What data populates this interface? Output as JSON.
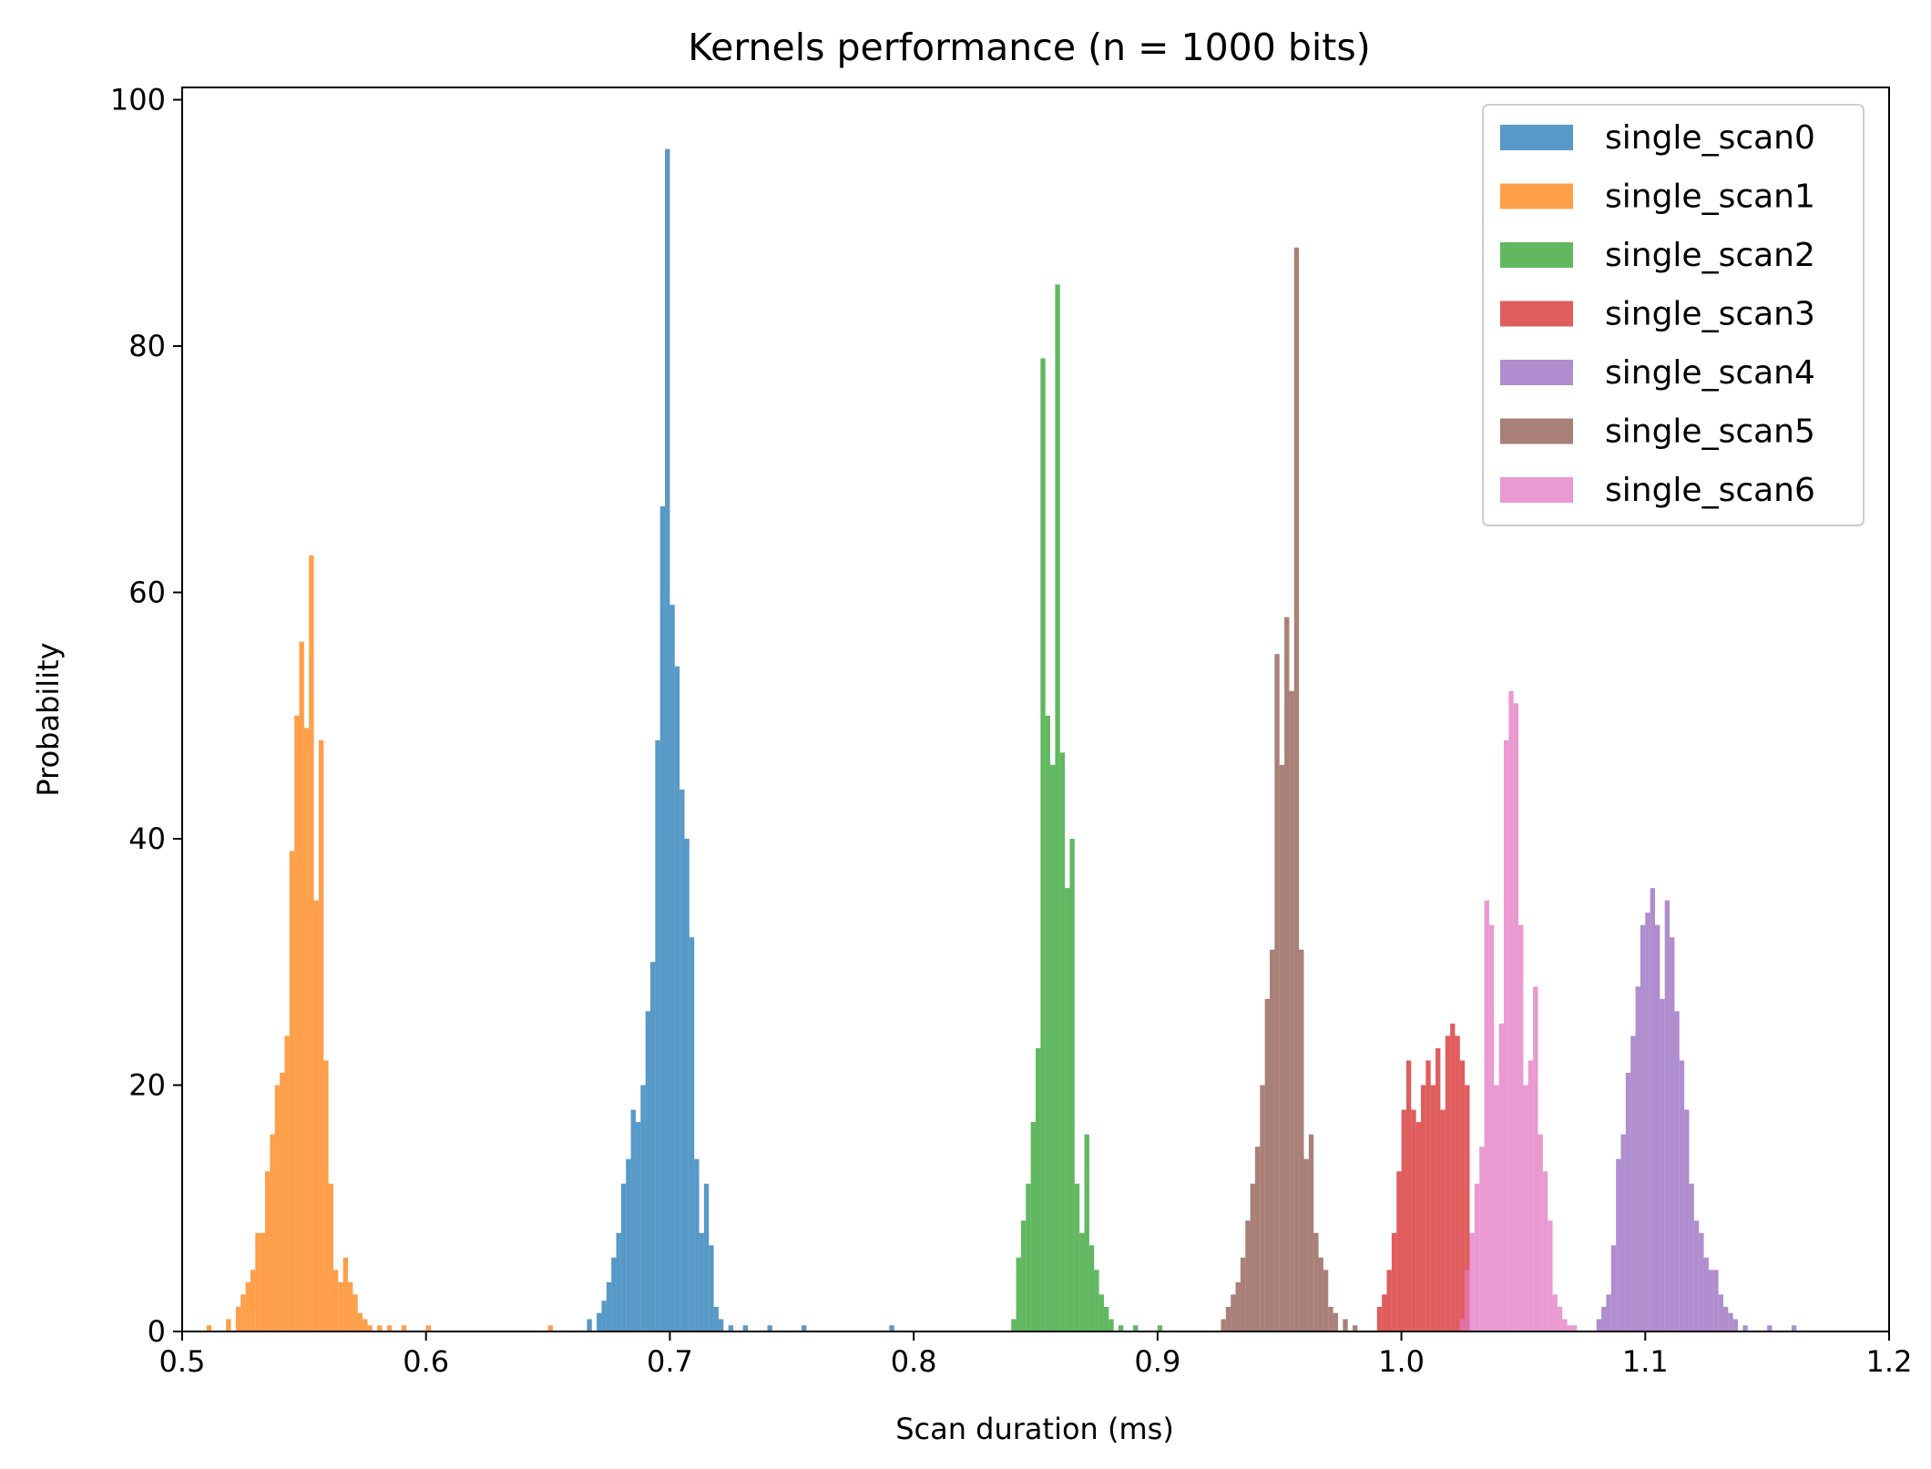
{
  "chart_data": {
    "type": "histogram",
    "title": "Kernels performance (n = 1000 bits)",
    "xlabel": "Scan duration (ms)",
    "ylabel": "Probability",
    "xlim": [
      0.5,
      1.2
    ],
    "ylim": [
      0,
      101
    ],
    "x_ticks": [
      0.5,
      0.6,
      0.7,
      0.8,
      0.9,
      1.0,
      1.1,
      1.2
    ],
    "x_tick_labels": [
      "0.5",
      "0.6",
      "0.7",
      "0.8",
      "0.9",
      "1.0",
      "1.1",
      "1.2"
    ],
    "y_ticks": [
      0,
      20,
      40,
      60,
      80,
      100
    ],
    "y_tick_labels": [
      "0",
      "20",
      "40",
      "60",
      "80",
      "100"
    ],
    "bin_width": 0.002,
    "bar_alpha": 0.75,
    "grid": false,
    "legend_position": "top-right",
    "series": [
      {
        "name": "single_scan0",
        "color": "#1f77b4",
        "points": [
          [
            0.666,
            1
          ],
          [
            0.67,
            1.5
          ],
          [
            0.672,
            2.5
          ],
          [
            0.674,
            4
          ],
          [
            0.676,
            6
          ],
          [
            0.678,
            8
          ],
          [
            0.68,
            12
          ],
          [
            0.682,
            14
          ],
          [
            0.684,
            18
          ],
          [
            0.686,
            17
          ],
          [
            0.688,
            20
          ],
          [
            0.69,
            26
          ],
          [
            0.692,
            30
          ],
          [
            0.694,
            48
          ],
          [
            0.696,
            67
          ],
          [
            0.698,
            96
          ],
          [
            0.7,
            59
          ],
          [
            0.702,
            54
          ],
          [
            0.704,
            44
          ],
          [
            0.706,
            40
          ],
          [
            0.708,
            32
          ],
          [
            0.71,
            14
          ],
          [
            0.712,
            8
          ],
          [
            0.714,
            12
          ],
          [
            0.716,
            7
          ],
          [
            0.718,
            2
          ],
          [
            0.72,
            1
          ],
          [
            0.724,
            0.5
          ],
          [
            0.73,
            0.5
          ],
          [
            0.74,
            0.5
          ],
          [
            0.754,
            0.5
          ],
          [
            0.79,
            0.5
          ]
        ]
      },
      {
        "name": "single_scan1",
        "color": "#ff7f0e",
        "points": [
          [
            0.51,
            0.5
          ],
          [
            0.518,
            1
          ],
          [
            0.522,
            2
          ],
          [
            0.524,
            3
          ],
          [
            0.526,
            4
          ],
          [
            0.528,
            5
          ],
          [
            0.53,
            8
          ],
          [
            0.532,
            8
          ],
          [
            0.534,
            13
          ],
          [
            0.536,
            16
          ],
          [
            0.538,
            20
          ],
          [
            0.54,
            21
          ],
          [
            0.542,
            24
          ],
          [
            0.544,
            39
          ],
          [
            0.546,
            50
          ],
          [
            0.548,
            56
          ],
          [
            0.55,
            49
          ],
          [
            0.552,
            63
          ],
          [
            0.554,
            35
          ],
          [
            0.556,
            48
          ],
          [
            0.558,
            22
          ],
          [
            0.56,
            12
          ],
          [
            0.562,
            5
          ],
          [
            0.564,
            4
          ],
          [
            0.566,
            6
          ],
          [
            0.568,
            4
          ],
          [
            0.57,
            3
          ],
          [
            0.572,
            1.5
          ],
          [
            0.574,
            1
          ],
          [
            0.576,
            0.5
          ],
          [
            0.58,
            0.5
          ],
          [
            0.584,
            0.5
          ],
          [
            0.59,
            0.5
          ],
          [
            0.6,
            0.5
          ],
          [
            0.65,
            0.5
          ]
        ]
      },
      {
        "name": "single_scan2",
        "color": "#2ca02c",
        "points": [
          [
            0.84,
            1
          ],
          [
            0.842,
            6
          ],
          [
            0.844,
            9
          ],
          [
            0.846,
            12
          ],
          [
            0.848,
            17
          ],
          [
            0.85,
            23
          ],
          [
            0.852,
            79
          ],
          [
            0.854,
            50
          ],
          [
            0.856,
            46
          ],
          [
            0.858,
            85
          ],
          [
            0.86,
            47
          ],
          [
            0.862,
            36
          ],
          [
            0.864,
            40
          ],
          [
            0.866,
            12
          ],
          [
            0.868,
            8
          ],
          [
            0.87,
            16
          ],
          [
            0.872,
            7
          ],
          [
            0.874,
            5
          ],
          [
            0.876,
            3
          ],
          [
            0.878,
            2
          ],
          [
            0.88,
            1
          ],
          [
            0.884,
            0.5
          ],
          [
            0.89,
            0.5
          ],
          [
            0.9,
            0.5
          ]
        ]
      },
      {
        "name": "single_scan3",
        "color": "#d62728",
        "points": [
          [
            0.99,
            2
          ],
          [
            0.992,
            3
          ],
          [
            0.994,
            5
          ],
          [
            0.996,
            8
          ],
          [
            0.998,
            13
          ],
          [
            1.0,
            18
          ],
          [
            1.002,
            22
          ],
          [
            1.004,
            18
          ],
          [
            1.006,
            17
          ],
          [
            1.008,
            20
          ],
          [
            1.01,
            22
          ],
          [
            1.012,
            20
          ],
          [
            1.014,
            23
          ],
          [
            1.016,
            18
          ],
          [
            1.018,
            24
          ],
          [
            1.02,
            25
          ],
          [
            1.022,
            24
          ],
          [
            1.024,
            22
          ],
          [
            1.026,
            20
          ]
        ]
      },
      {
        "name": "single_scan4",
        "color": "#9467bd",
        "points": [
          [
            1.08,
            1
          ],
          [
            1.082,
            2
          ],
          [
            1.084,
            3
          ],
          [
            1.086,
            7
          ],
          [
            1.088,
            14
          ],
          [
            1.09,
            16
          ],
          [
            1.092,
            21
          ],
          [
            1.094,
            24
          ],
          [
            1.096,
            28
          ],
          [
            1.098,
            33
          ],
          [
            1.1,
            34
          ],
          [
            1.102,
            36
          ],
          [
            1.104,
            33
          ],
          [
            1.106,
            27
          ],
          [
            1.108,
            35
          ],
          [
            1.11,
            32
          ],
          [
            1.112,
            26
          ],
          [
            1.114,
            22
          ],
          [
            1.116,
            18
          ],
          [
            1.118,
            12
          ],
          [
            1.12,
            9
          ],
          [
            1.122,
            8
          ],
          [
            1.124,
            6
          ],
          [
            1.126,
            5
          ],
          [
            1.128,
            5
          ],
          [
            1.13,
            3
          ],
          [
            1.132,
            2
          ],
          [
            1.134,
            1.5
          ],
          [
            1.136,
            1
          ],
          [
            1.14,
            0.5
          ],
          [
            1.15,
            0.5
          ],
          [
            1.16,
            0.5
          ]
        ]
      },
      {
        "name": "single_scan5",
        "color": "#8c564b",
        "points": [
          [
            0.926,
            1
          ],
          [
            0.928,
            2
          ],
          [
            0.93,
            3
          ],
          [
            0.932,
            4
          ],
          [
            0.934,
            6
          ],
          [
            0.936,
            9
          ],
          [
            0.938,
            12
          ],
          [
            0.94,
            15
          ],
          [
            0.942,
            20
          ],
          [
            0.944,
            27
          ],
          [
            0.946,
            31
          ],
          [
            0.948,
            55
          ],
          [
            0.95,
            46
          ],
          [
            0.952,
            58
          ],
          [
            0.954,
            52
          ],
          [
            0.956,
            88
          ],
          [
            0.958,
            31
          ],
          [
            0.96,
            14
          ],
          [
            0.962,
            16
          ],
          [
            0.964,
            8
          ],
          [
            0.966,
            6
          ],
          [
            0.968,
            5
          ],
          [
            0.97,
            2
          ],
          [
            0.972,
            1.5
          ],
          [
            0.976,
            1
          ],
          [
            0.98,
            0.5
          ]
        ]
      },
      {
        "name": "single_scan6",
        "color": "#e377c2",
        "points": [
          [
            1.024,
            1
          ],
          [
            1.026,
            5
          ],
          [
            1.028,
            8
          ],
          [
            1.03,
            12
          ],
          [
            1.032,
            15
          ],
          [
            1.034,
            35
          ],
          [
            1.036,
            33
          ],
          [
            1.038,
            20
          ],
          [
            1.04,
            25
          ],
          [
            1.042,
            48
          ],
          [
            1.044,
            52
          ],
          [
            1.046,
            51
          ],
          [
            1.048,
            33
          ],
          [
            1.05,
            20
          ],
          [
            1.052,
            22
          ],
          [
            1.054,
            28
          ],
          [
            1.056,
            16
          ],
          [
            1.058,
            13
          ],
          [
            1.06,
            9
          ],
          [
            1.062,
            3
          ],
          [
            1.064,
            2
          ],
          [
            1.066,
            1
          ],
          [
            1.068,
            0.5
          ],
          [
            1.07,
            0.5
          ]
        ]
      }
    ]
  }
}
